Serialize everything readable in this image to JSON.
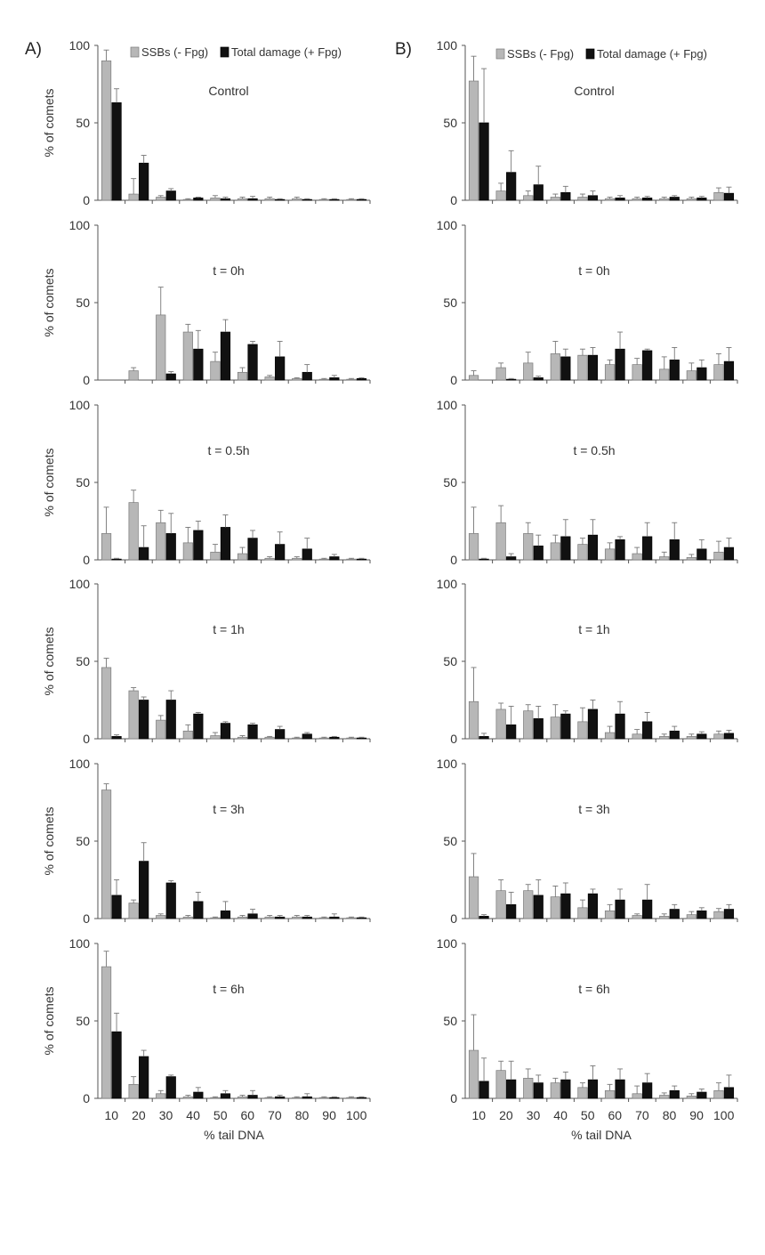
{
  "colors": {
    "ssb": "#b7b7b7",
    "total": "#111111",
    "axis": "#555555"
  },
  "panel_labels": [
    "A)",
    "B)"
  ],
  "legend": [
    "SSBs (- Fpg)",
    "Total damage (+ Fpg)"
  ],
  "chart_data": [
    {
      "panel": "A)",
      "row": 0,
      "type": "bar",
      "title": "Control",
      "categories": [
        "10",
        "20",
        "30",
        "40",
        "50",
        "60",
        "70",
        "80",
        "90",
        "100"
      ],
      "xlabel": "",
      "ylabel": "% of comets",
      "ylim": [
        0,
        100
      ],
      "yticks": [
        0,
        50,
        100
      ],
      "series": [
        {
          "name": "SSBs (- Fpg)",
          "values": [
            90,
            4,
            2,
            0.5,
            1.5,
            1,
            1,
            1,
            0.5,
            0.5
          ],
          "errors": [
            7,
            10,
            1,
            0.5,
            1.5,
            1,
            1,
            1,
            0.5,
            0.5
          ]
        },
        {
          "name": "Total damage (+ Fpg)",
          "values": [
            63,
            24,
            6,
            1.5,
            1,
            1,
            0.5,
            0.5,
            0.5,
            0.5
          ],
          "errors": [
            9,
            5,
            1.5,
            0.5,
            1,
            1.5,
            0.5,
            0.5,
            0.5,
            0.5
          ]
        }
      ]
    },
    {
      "panel": "A)",
      "row": 1,
      "type": "bar",
      "title": "t = 0h",
      "categories": [
        "10",
        "20",
        "30",
        "40",
        "50",
        "60",
        "70",
        "80",
        "90",
        "100"
      ],
      "xlabel": "",
      "ylabel": "% of comets",
      "ylim": [
        0,
        100
      ],
      "yticks": [
        0,
        50,
        100
      ],
      "series": [
        {
          "name": "SSBs (- Fpg)",
          "values": [
            0,
            6,
            42,
            31,
            12,
            5,
            2,
            1,
            0.5,
            0.5
          ],
          "errors": [
            0,
            2,
            18,
            5,
            6,
            3,
            1,
            0.5,
            0.5,
            0.5
          ]
        },
        {
          "name": "Total damage (+ Fpg)",
          "values": [
            0,
            0,
            4,
            20,
            31,
            23,
            15,
            5,
            1.5,
            1
          ],
          "errors": [
            0,
            0,
            1.5,
            12,
            8,
            2,
            10,
            5,
            1.5,
            0.5
          ]
        }
      ]
    },
    {
      "panel": "A)",
      "row": 2,
      "type": "bar",
      "title": "t = 0.5h",
      "categories": [
        "10",
        "20",
        "30",
        "40",
        "50",
        "60",
        "70",
        "80",
        "90",
        "100"
      ],
      "xlabel": "",
      "ylabel": "% of comets",
      "ylim": [
        0,
        100
      ],
      "yticks": [
        0,
        50,
        100
      ],
      "series": [
        {
          "name": "SSBs (- Fpg)",
          "values": [
            17,
            37,
            24,
            11,
            5,
            4,
            1,
            1,
            0.5,
            0.5
          ],
          "errors": [
            17,
            8,
            8,
            10,
            5,
            4,
            1,
            1,
            0.5,
            0.5
          ]
        },
        {
          "name": "Total damage (+ Fpg)",
          "values": [
            0.5,
            8,
            17,
            19,
            21,
            14,
            10,
            7,
            2,
            0.5
          ],
          "errors": [
            0.5,
            14,
            13,
            6,
            8,
            5,
            8,
            7,
            1.5,
            0.5
          ]
        }
      ]
    },
    {
      "panel": "A)",
      "row": 3,
      "type": "bar",
      "title": "t = 1h",
      "categories": [
        "10",
        "20",
        "30",
        "40",
        "50",
        "60",
        "70",
        "80",
        "90",
        "100"
      ],
      "xlabel": "",
      "ylabel": "% of comets",
      "ylim": [
        0,
        100
      ],
      "yticks": [
        0,
        50,
        100
      ],
      "series": [
        {
          "name": "SSBs (- Fpg)",
          "values": [
            46,
            31,
            12,
            5,
            2,
            1,
            1,
            0.5,
            0.5,
            0.5
          ],
          "errors": [
            6,
            2,
            3,
            4,
            2,
            1,
            0.5,
            0.5,
            0.5,
            0.5
          ]
        },
        {
          "name": "Total damage (+ Fpg)",
          "values": [
            1.5,
            25,
            25,
            16,
            10,
            9,
            6,
            3,
            1,
            0.5
          ],
          "errors": [
            1,
            2,
            6,
            1,
            1,
            1,
            2,
            1,
            0.5,
            0.5
          ]
        }
      ]
    },
    {
      "panel": "A)",
      "row": 4,
      "type": "bar",
      "title": "t = 3h",
      "categories": [
        "10",
        "20",
        "30",
        "40",
        "50",
        "60",
        "70",
        "80",
        "90",
        "100"
      ],
      "xlabel": "",
      "ylabel": "% of comets",
      "ylim": [
        0,
        100
      ],
      "yticks": [
        0,
        50,
        100
      ],
      "series": [
        {
          "name": "SSBs (- Fpg)",
          "values": [
            83,
            10,
            2,
            1,
            0.5,
            1,
            1,
            1,
            0.5,
            0.5
          ],
          "errors": [
            4,
            2,
            1,
            1,
            0.5,
            1,
            1,
            1,
            0.5,
            0.5
          ]
        },
        {
          "name": "Total damage (+ Fpg)",
          "values": [
            15,
            37,
            23,
            11,
            5,
            3,
            1,
            1,
            1,
            0.5
          ],
          "errors": [
            10,
            12,
            1.5,
            6,
            6,
            3,
            1,
            1,
            2,
            0.5
          ]
        }
      ]
    },
    {
      "panel": "A)",
      "row": 5,
      "type": "bar",
      "title": "t = 6h",
      "categories": [
        "10",
        "20",
        "30",
        "40",
        "50",
        "60",
        "70",
        "80",
        "90",
        "100"
      ],
      "xlabel": "% tail DNA",
      "ylabel": "% of comets",
      "ylim": [
        0,
        100
      ],
      "yticks": [
        0,
        50,
        100
      ],
      "series": [
        {
          "name": "SSBs (- Fpg)",
          "values": [
            85,
            9,
            3,
            1,
            0.5,
            1,
            0.5,
            0.5,
            0.5,
            0.5
          ],
          "errors": [
            10,
            5,
            2,
            1,
            0.5,
            1,
            0.5,
            0.5,
            0.5,
            0.5
          ]
        },
        {
          "name": "Total damage (+ Fpg)",
          "values": [
            43,
            27,
            14,
            4,
            3,
            2,
            1,
            1,
            0.5,
            0.5
          ],
          "errors": [
            12,
            4,
            1,
            3,
            2,
            3,
            1,
            2,
            0.5,
            0.5
          ]
        }
      ]
    },
    {
      "panel": "B)",
      "row": 0,
      "type": "bar",
      "title": "Control",
      "categories": [
        "10",
        "20",
        "30",
        "40",
        "50",
        "60",
        "70",
        "80",
        "90",
        "100"
      ],
      "xlabel": "",
      "ylabel": "",
      "ylim": [
        0,
        100
      ],
      "yticks": [
        0,
        50,
        100
      ],
      "series": [
        {
          "name": "SSBs (- Fpg)",
          "values": [
            77,
            6,
            3,
            2,
            2,
            1,
            1,
            1,
            1,
            5
          ],
          "errors": [
            16,
            5,
            3,
            2,
            2,
            1,
            1,
            1,
            1,
            3
          ]
        },
        {
          "name": "Total damage (+ Fpg)",
          "values": [
            50,
            18,
            10,
            5,
            3,
            1.5,
            1.5,
            2,
            1.5,
            4.5
          ],
          "errors": [
            35,
            14,
            12,
            4,
            3,
            1.5,
            1,
            1,
            1,
            4
          ]
        }
      ]
    },
    {
      "panel": "B)",
      "row": 1,
      "type": "bar",
      "title": "t = 0h",
      "categories": [
        "10",
        "20",
        "30",
        "40",
        "50",
        "60",
        "70",
        "80",
        "90",
        "100"
      ],
      "xlabel": "",
      "ylabel": "",
      "ylim": [
        0,
        100
      ],
      "yticks": [
        0,
        50,
        100
      ],
      "series": [
        {
          "name": "SSBs (- Fpg)",
          "values": [
            3,
            8,
            11,
            17,
            16,
            10,
            10,
            7,
            6,
            10
          ],
          "errors": [
            3,
            3,
            7,
            8,
            4,
            3,
            4,
            8,
            5,
            7
          ]
        },
        {
          "name": "Total damage (+ Fpg)",
          "values": [
            0,
            0.5,
            1.5,
            15,
            16,
            20,
            19,
            13,
            8,
            12
          ],
          "errors": [
            0,
            0.5,
            1,
            5,
            5,
            11,
            1,
            8,
            5,
            9
          ]
        }
      ]
    },
    {
      "panel": "B)",
      "row": 2,
      "type": "bar",
      "title": "t = 0.5h",
      "categories": [
        "10",
        "20",
        "30",
        "40",
        "50",
        "60",
        "70",
        "80",
        "90",
        "100"
      ],
      "xlabel": "",
      "ylabel": "",
      "ylim": [
        0,
        100
      ],
      "yticks": [
        0,
        50,
        100
      ],
      "series": [
        {
          "name": "SSBs (- Fpg)",
          "values": [
            17,
            24,
            17,
            11,
            10,
            7,
            4,
            2,
            1.5,
            5
          ],
          "errors": [
            17,
            11,
            7,
            5,
            4,
            4,
            4,
            3,
            2,
            7
          ]
        },
        {
          "name": "Total damage (+ Fpg)",
          "values": [
            0.5,
            2,
            9,
            15,
            16,
            13,
            15,
            13,
            7,
            8
          ],
          "errors": [
            0.5,
            2,
            7,
            11,
            10,
            2,
            9,
            11,
            6,
            6
          ]
        }
      ]
    },
    {
      "panel": "B)",
      "row": 3,
      "type": "bar",
      "title": "t = 1h",
      "categories": [
        "10",
        "20",
        "30",
        "40",
        "50",
        "60",
        "70",
        "80",
        "90",
        "100"
      ],
      "xlabel": "",
      "ylabel": "",
      "ylim": [
        0,
        100
      ],
      "yticks": [
        0,
        50,
        100
      ],
      "series": [
        {
          "name": "SSBs (- Fpg)",
          "values": [
            24,
            19,
            18,
            14,
            11,
            4,
            3,
            1.5,
            1.5,
            3
          ],
          "errors": [
            22,
            4,
            4,
            8,
            9,
            4,
            3,
            1.5,
            1.5,
            2
          ]
        },
        {
          "name": "Total damage (+ Fpg)",
          "values": [
            1.5,
            9,
            13,
            16,
            19,
            16,
            11,
            5,
            3,
            3.5
          ],
          "errors": [
            2,
            12,
            8,
            2,
            6,
            8,
            6,
            3,
            1.5,
            2
          ]
        }
      ]
    },
    {
      "panel": "B)",
      "row": 4,
      "type": "bar",
      "title": "t = 3h",
      "categories": [
        "10",
        "20",
        "30",
        "40",
        "50",
        "60",
        "70",
        "80",
        "90",
        "100"
      ],
      "xlabel": "",
      "ylabel": "",
      "ylim": [
        0,
        100
      ],
      "yticks": [
        0,
        50,
        100
      ],
      "series": [
        {
          "name": "SSBs (- Fpg)",
          "values": [
            27,
            18,
            18,
            14,
            7,
            5,
            2,
            1.5,
            2.5,
            4.5
          ],
          "errors": [
            15,
            7,
            4,
            7,
            5,
            4,
            1,
            1.5,
            2,
            2
          ]
        },
        {
          "name": "Total damage (+ Fpg)",
          "values": [
            1.5,
            9,
            15,
            16,
            16,
            12,
            12,
            6,
            5,
            6
          ],
          "errors": [
            1,
            8,
            10,
            7,
            3,
            7,
            10,
            3,
            2,
            3
          ]
        }
      ]
    },
    {
      "panel": "B)",
      "row": 5,
      "type": "bar",
      "title": "t = 6h",
      "categories": [
        "10",
        "20",
        "30",
        "40",
        "50",
        "60",
        "70",
        "80",
        "90",
        "100"
      ],
      "xlabel": "% tail DNA",
      "ylabel": "",
      "ylim": [
        0,
        100
      ],
      "yticks": [
        0,
        50,
        100
      ],
      "series": [
        {
          "name": "SSBs (- Fpg)",
          "values": [
            31,
            18,
            13,
            10,
            7,
            5,
            3,
            2,
            1.5,
            5
          ],
          "errors": [
            23,
            6,
            6,
            3,
            3,
            4,
            5,
            1.5,
            1.5,
            5
          ]
        },
        {
          "name": "Total damage (+ Fpg)",
          "values": [
            11,
            12,
            10,
            12,
            12,
            12,
            10,
            5,
            4,
            7
          ],
          "errors": [
            15,
            12,
            5,
            5,
            9,
            7,
            6,
            3,
            2,
            8
          ]
        }
      ]
    }
  ]
}
